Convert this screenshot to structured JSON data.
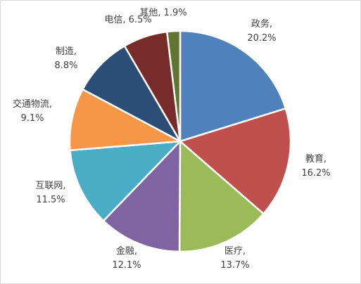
{
  "chart_data": {
    "type": "pie",
    "title": "",
    "start_angle_deg": 0,
    "direction": "clockwise",
    "legend": "none",
    "slices": [
      {
        "name": "政务",
        "value": 20.2,
        "label": "20.2%",
        "color": "#4f81bd"
      },
      {
        "name": "教育",
        "value": 16.2,
        "label": "16.2%",
        "color": "#c0504d"
      },
      {
        "name": "医疗",
        "value": 13.7,
        "label": "13.7%",
        "color": "#9bbb59"
      },
      {
        "name": "金融",
        "value": 12.1,
        "label": "12.1%",
        "color": "#8064a2"
      },
      {
        "name": "互联网",
        "value": 11.5,
        "label": "11.5%",
        "color": "#4bacc6"
      },
      {
        "name": "交通物流",
        "value": 9.1,
        "label": "9.1%",
        "color": "#f79646"
      },
      {
        "name": "制造",
        "value": 8.8,
        "label": "8.8%",
        "color": "#2c4d75"
      },
      {
        "name": "电信",
        "value": 6.5,
        "label": "6.5%",
        "color": "#772c2a"
      },
      {
        "name": "其他",
        "value": 1.9,
        "label": "1.9%",
        "color": "#5f7530"
      }
    ]
  }
}
